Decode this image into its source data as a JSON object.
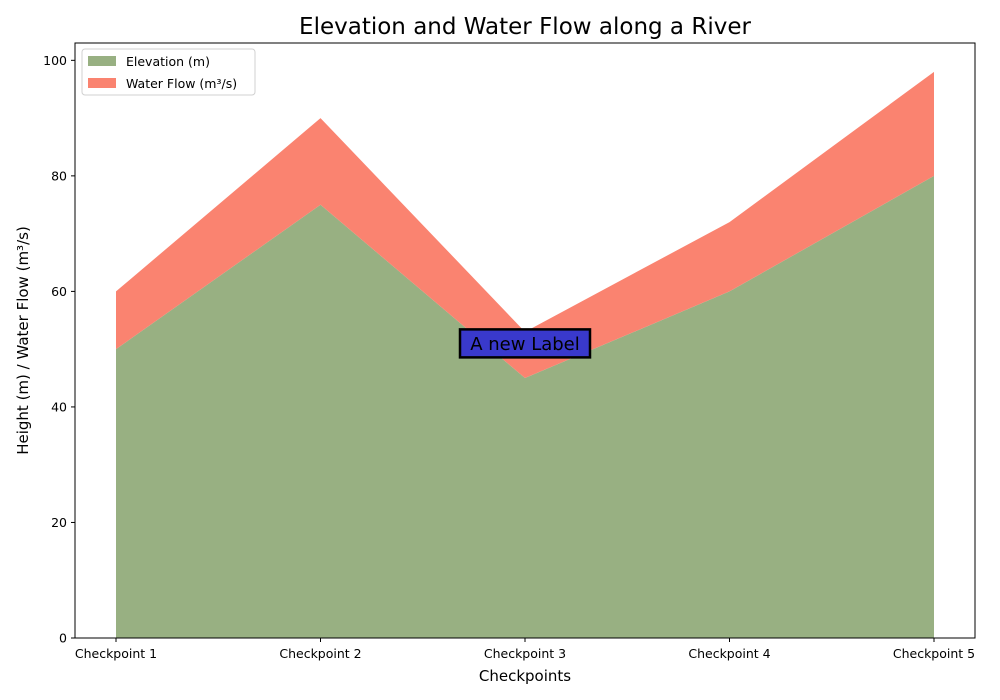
{
  "chart_data": {
    "type": "area",
    "stacked": true,
    "title": "Elevation and Water Flow along a River",
    "xlabel": "Checkpoints",
    "ylabel": "Height (m) / Water Flow (m³/s)",
    "categories": [
      "Checkpoint 1",
      "Checkpoint 2",
      "Checkpoint 3",
      "Checkpoint 4",
      "Checkpoint 5"
    ],
    "series": [
      {
        "name": "Elevation (m)",
        "values": [
          50,
          75,
          45,
          60,
          80
        ],
        "color": "#98b082"
      },
      {
        "name": "Water Flow (m³/s)",
        "values": [
          10,
          15,
          8,
          12,
          18
        ],
        "color": "#fa8370"
      }
    ],
    "ylim": [
      0,
      103
    ],
    "yticks": [
      0,
      20,
      40,
      60,
      80,
      100
    ],
    "grid": false,
    "legend": "upper-left",
    "annotation": {
      "text": "A new Label",
      "x": "Checkpoint 3",
      "y": 51,
      "box_color": "#3939cc",
      "border_color": "#000000"
    }
  }
}
